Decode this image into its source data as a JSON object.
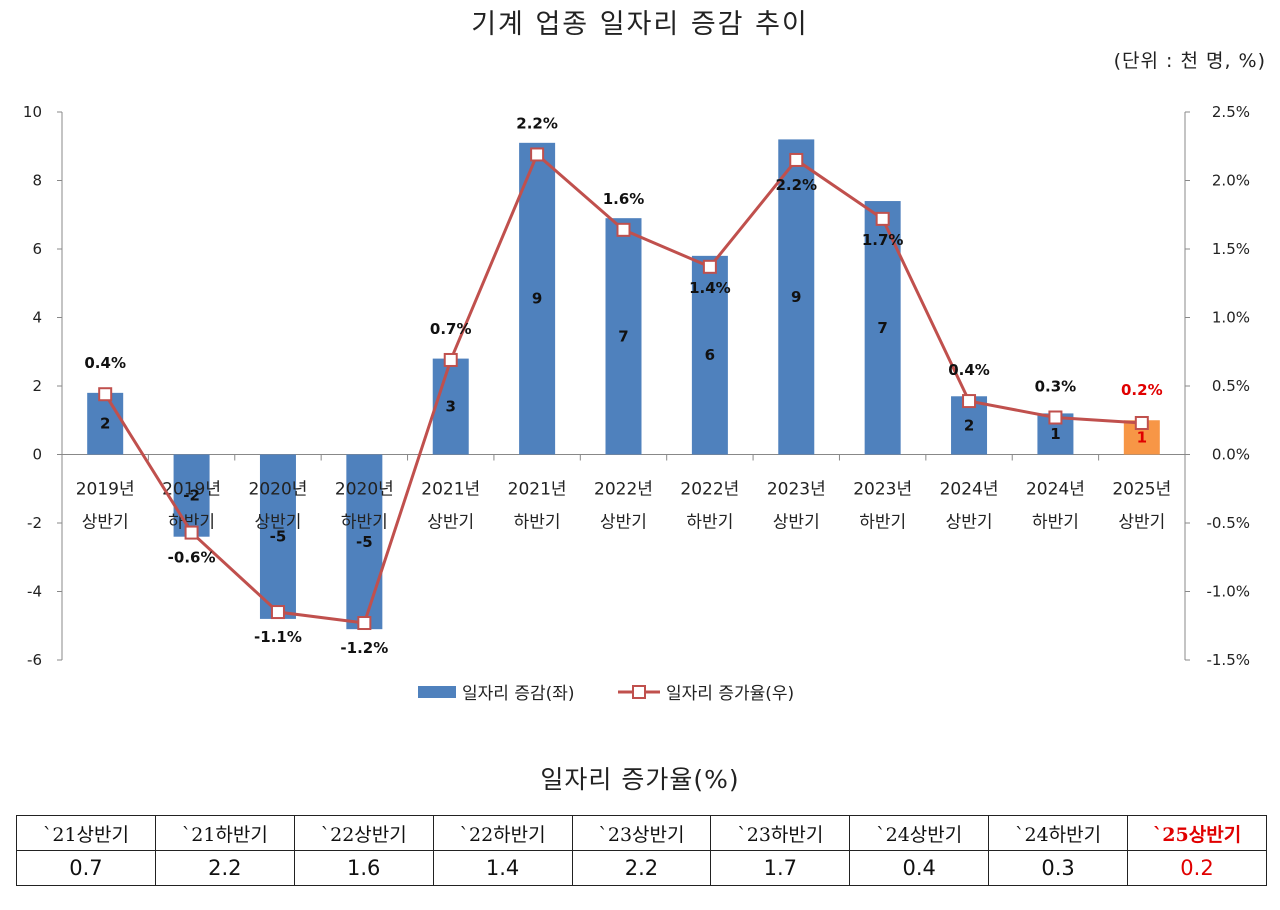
{
  "title": "기계 업종 일자리 증감  추이",
  "unit_label": "(단위 : 천 명, %)",
  "chart_data": {
    "type": "bar+line",
    "title": "기계 업종 일자리 증감  추이",
    "categories": [
      [
        "2019년",
        "상반기"
      ],
      [
        "2019년",
        "하반기"
      ],
      [
        "2020년",
        "상반기"
      ],
      [
        "2020년",
        "하반기"
      ],
      [
        "2021년",
        "상반기"
      ],
      [
        "2021년",
        "하반기"
      ],
      [
        "2022년",
        "상반기"
      ],
      [
        "2022년",
        "하반기"
      ],
      [
        "2023년",
        "상반기"
      ],
      [
        "2023년",
        "하반기"
      ],
      [
        "2024년",
        "상반기"
      ],
      [
        "2024년",
        "하반기"
      ],
      [
        "2025년",
        "상반기"
      ]
    ],
    "bar_series": {
      "name": "일자리 증감(좌)",
      "values": [
        1.8,
        -2.4,
        -4.8,
        -5.1,
        2.8,
        9.1,
        6.9,
        5.8,
        9.2,
        7.4,
        1.7,
        1.2,
        1.0
      ],
      "labels": [
        "2",
        "-2",
        "-5",
        "-5",
        "3",
        "9",
        "7",
        "6",
        "9",
        "7",
        "2",
        "1",
        "1"
      ],
      "color": "#4f81bd",
      "highlight_color": "#f79646",
      "highlight_index": 12
    },
    "line_series": {
      "name": "일자리 증가율(우)",
      "values": [
        0.44,
        -0.57,
        -1.15,
        -1.23,
        0.69,
        2.19,
        1.64,
        1.37,
        2.15,
        1.72,
        0.39,
        0.27,
        0.23
      ],
      "labels": [
        "0.4%",
        "-0.6%",
        "-1.1%",
        "-1.2%",
        "0.7%",
        "2.2%",
        "1.6%",
        "1.4%",
        "2.2%",
        "1.7%",
        "0.4%",
        "0.3%",
        "0.2%"
      ],
      "color": "#c0504d"
    },
    "y_left": {
      "min": -6,
      "max": 10,
      "ticks": [
        "-6",
        "-4",
        "-2",
        "0",
        "2",
        "4",
        "6",
        "8",
        "10"
      ]
    },
    "y_right": {
      "min": -1.5,
      "max": 2.5,
      "ticks": [
        "-1.5%",
        "-1.0%",
        "-0.5%",
        "0.0%",
        "0.5%",
        "1.0%",
        "1.5%",
        "2.0%",
        "2.5%"
      ]
    },
    "legend_position": "bottom",
    "grid": false,
    "highlight_label_color": "#e00000"
  },
  "table": {
    "title": "일자리 증가율(%)",
    "headers": [
      "`21상반기",
      "`21하반기",
      "`22상반기",
      "`22하반기",
      "`23상반기",
      "`23하반기",
      "`24상반기",
      "`24하반기",
      "`25상반기"
    ],
    "values": [
      "0.7",
      "2.2",
      "1.6",
      "1.4",
      "2.2",
      "1.7",
      "0.4",
      "0.3",
      "0.2"
    ],
    "highlight_index": 8,
    "highlight_color": "#e00000"
  }
}
